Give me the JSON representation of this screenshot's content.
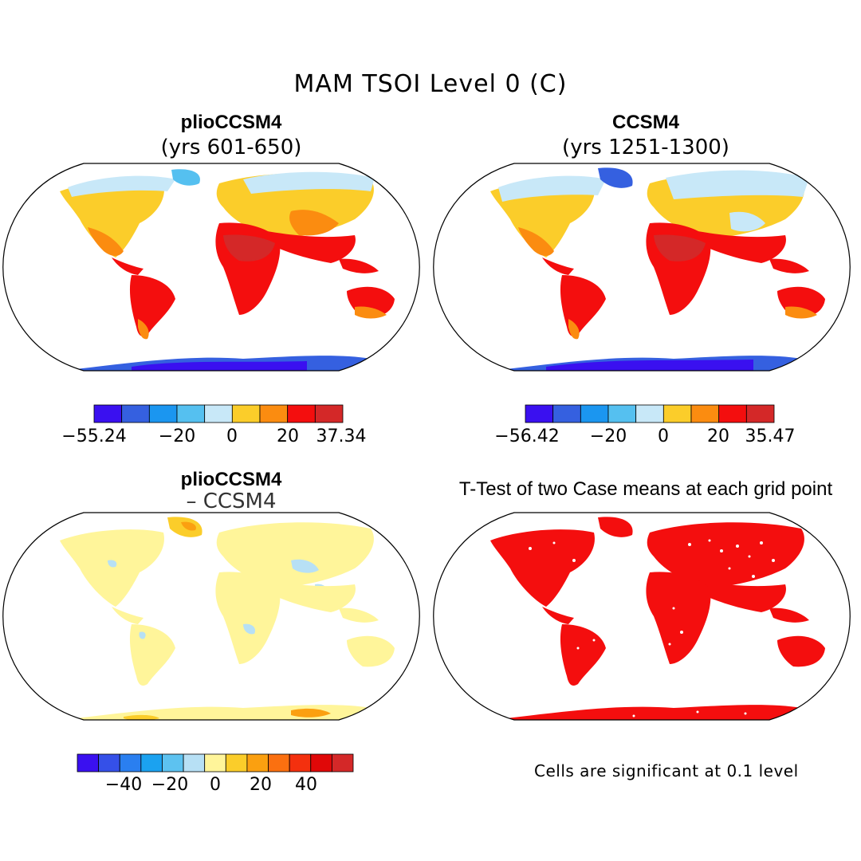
{
  "figure": {
    "title": "MAM TSOI Level 0 (C)"
  },
  "panels": {
    "top_left": {
      "title": "plioCCSM4",
      "subtitle": "(yrs 601-650)"
    },
    "top_right": {
      "title": "CCSM4",
      "subtitle": "(yrs 1251-1300)"
    },
    "bottom_left": {
      "title": "plioCCSM4",
      "subtitle": "– CCSM4"
    },
    "bottom_right": {
      "title": "T-Test of two Case means at each grid point",
      "note": "Cells are significant at 0.1 level"
    }
  },
  "colorbars": {
    "top_left": {
      "colors": [
        "#3a10f0",
        "#3560e0",
        "#1b96f0",
        "#55c0f0",
        "#c8e8f8",
        "#fbcd2a",
        "#fb8c10",
        "#f40e0e",
        "#d42828"
      ],
      "tick_labels": [
        "−55.24",
        "−20",
        "0",
        "20",
        "37.34"
      ]
    },
    "top_right": {
      "colors": [
        "#3a10f0",
        "#3560e0",
        "#1b96f0",
        "#55c0f0",
        "#c8e8f8",
        "#fbcd2a",
        "#fb8c10",
        "#f40e0e",
        "#d42828"
      ],
      "tick_labels": [
        "−56.42",
        "−20",
        "0",
        "20",
        "35.47"
      ]
    },
    "bottom_left": {
      "colors": [
        "#3a10f0",
        "#3550e8",
        "#2a7ff0",
        "#1ba2f0",
        "#5dc2f0",
        "#b7e0f5",
        "#fff59a",
        "#fbcd2a",
        "#fba010",
        "#fb7010",
        "#f4300e",
        "#e00808",
        "#d42828"
      ],
      "tick_labels": [
        "−40",
        "−20",
        "0",
        "20",
        "40"
      ]
    }
  }
}
